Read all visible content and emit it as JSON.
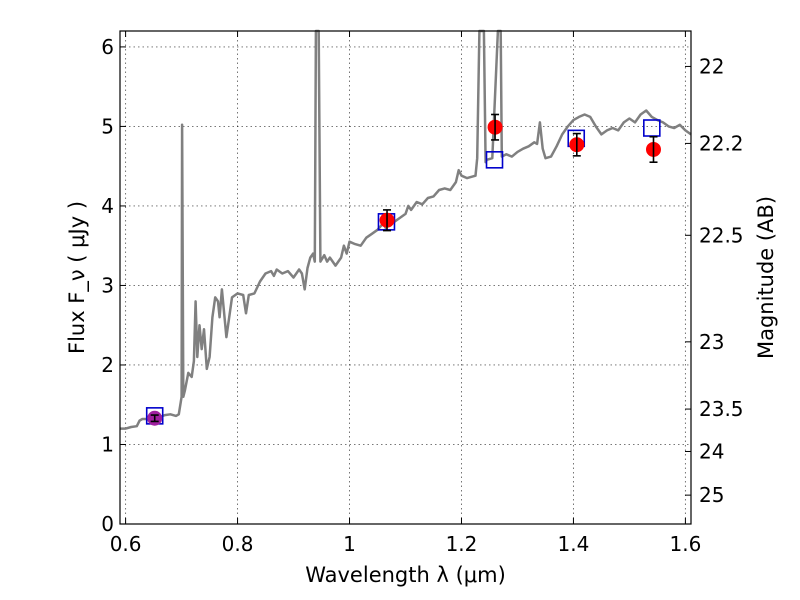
{
  "chart_data": {
    "type": "line",
    "xlabel": "Wavelength  λ (μm)",
    "ylabel": "Flux  F_ν  ( μJy )",
    "y2label": "Magnitude (AB)",
    "xlim": [
      0.59,
      1.61
    ],
    "ylim": [
      0,
      6.2
    ],
    "grid": true,
    "x_ticks": [
      {
        "value": 0.6,
        "label": "0.6"
      },
      {
        "value": 0.8,
        "label": "0.8"
      },
      {
        "value": 1.0,
        "label": "1"
      },
      {
        "value": 1.2,
        "label": "1.2"
      },
      {
        "value": 1.4,
        "label": "1.4"
      },
      {
        "value": 1.6,
        "label": "1.6"
      }
    ],
    "y_ticks": [
      {
        "value": 0,
        "label": "0"
      },
      {
        "value": 1,
        "label": "1"
      },
      {
        "value": 2,
        "label": "2"
      },
      {
        "value": 3,
        "label": "3"
      },
      {
        "value": 4,
        "label": "4"
      },
      {
        "value": 5,
        "label": "5"
      },
      {
        "value": 6,
        "label": "6"
      }
    ],
    "y2_ticks": [
      {
        "mag": 22,
        "label": "22"
      },
      {
        "mag": 22.2,
        "label": "22.2"
      },
      {
        "mag": 22.5,
        "label": "22.5"
      },
      {
        "mag": 23,
        "label": "23"
      },
      {
        "mag": 23.5,
        "label": "23.5"
      },
      {
        "mag": 24,
        "label": "24"
      },
      {
        "mag": 25,
        "label": "25"
      }
    ],
    "colors": {
      "model": "#808080",
      "observed": "#ff0000",
      "observed_upper_limit": "#a020a0",
      "model_photometry": "#0000cc",
      "errorbar": "#000000"
    },
    "series": [
      {
        "kind": "model_sed",
        "points": [
          [
            0.59,
            1.2
          ],
          [
            0.6,
            1.2
          ],
          [
            0.61,
            1.22
          ],
          [
            0.62,
            1.23
          ],
          [
            0.625,
            1.3
          ],
          [
            0.63,
            1.32
          ],
          [
            0.64,
            1.32
          ],
          [
            0.65,
            1.35
          ],
          [
            0.66,
            1.34
          ],
          [
            0.67,
            1.37
          ],
          [
            0.68,
            1.38
          ],
          [
            0.69,
            1.36
          ],
          [
            0.695,
            1.38
          ],
          [
            0.7,
            1.6
          ],
          [
            0.701,
            5.02
          ],
          [
            0.703,
            1.6
          ],
          [
            0.706,
            1.68
          ],
          [
            0.712,
            1.9
          ],
          [
            0.718,
            1.85
          ],
          [
            0.722,
            2.05
          ],
          [
            0.725,
            2.8
          ],
          [
            0.728,
            2.1
          ],
          [
            0.732,
            2.5
          ],
          [
            0.736,
            2.2
          ],
          [
            0.74,
            2.45
          ],
          [
            0.745,
            1.95
          ],
          [
            0.75,
            2.1
          ],
          [
            0.755,
            2.6
          ],
          [
            0.76,
            2.85
          ],
          [
            0.765,
            2.8
          ],
          [
            0.768,
            2.6
          ],
          [
            0.772,
            2.95
          ],
          [
            0.78,
            2.35
          ],
          [
            0.785,
            2.6
          ],
          [
            0.79,
            2.85
          ],
          [
            0.8,
            2.9
          ],
          [
            0.81,
            2.88
          ],
          [
            0.815,
            2.65
          ],
          [
            0.82,
            2.88
          ],
          [
            0.83,
            2.9
          ],
          [
            0.84,
            3.05
          ],
          [
            0.85,
            3.15
          ],
          [
            0.86,
            3.18
          ],
          [
            0.865,
            3.12
          ],
          [
            0.87,
            3.2
          ],
          [
            0.88,
            3.15
          ],
          [
            0.89,
            3.18
          ],
          [
            0.9,
            3.1
          ],
          [
            0.91,
            3.2
          ],
          [
            0.915,
            3.15
          ],
          [
            0.92,
            2.95
          ],
          [
            0.925,
            3.22
          ],
          [
            0.93,
            3.35
          ],
          [
            0.935,
            3.4
          ],
          [
            0.938,
            3.3
          ],
          [
            0.94,
            6.2
          ],
          [
            0.945,
            6.2
          ],
          [
            0.948,
            3.3
          ],
          [
            0.955,
            3.38
          ],
          [
            0.96,
            3.3
          ],
          [
            0.965,
            3.35
          ],
          [
            0.97,
            3.3
          ],
          [
            0.975,
            3.25
          ],
          [
            0.985,
            3.35
          ],
          [
            0.99,
            3.5
          ],
          [
            0.995,
            3.4
          ],
          [
            1.0,
            3.55
          ],
          [
            1.01,
            3.52
          ],
          [
            1.02,
            3.5
          ],
          [
            1.03,
            3.6
          ],
          [
            1.04,
            3.65
          ],
          [
            1.05,
            3.7
          ],
          [
            1.06,
            3.78
          ],
          [
            1.065,
            3.72
          ],
          [
            1.07,
            3.85
          ],
          [
            1.08,
            3.8
          ],
          [
            1.09,
            3.85
          ],
          [
            1.1,
            3.9
          ],
          [
            1.105,
            4.0
          ],
          [
            1.11,
            3.95
          ],
          [
            1.12,
            4.05
          ],
          [
            1.13,
            4.02
          ],
          [
            1.14,
            4.1
          ],
          [
            1.15,
            4.12
          ],
          [
            1.16,
            4.2
          ],
          [
            1.17,
            4.22
          ],
          [
            1.18,
            4.2
          ],
          [
            1.19,
            4.3
          ],
          [
            1.195,
            4.45
          ],
          [
            1.2,
            4.38
          ],
          [
            1.21,
            4.35
          ],
          [
            1.225,
            4.38
          ],
          [
            1.228,
            4.6
          ],
          [
            1.232,
            6.2
          ],
          [
            1.24,
            6.2
          ],
          [
            1.243,
            4.55
          ],
          [
            1.245,
            4.58
          ],
          [
            1.255,
            4.6
          ],
          [
            1.265,
            6.2
          ],
          [
            1.27,
            6.2
          ],
          [
            1.272,
            4.62
          ],
          [
            1.28,
            4.65
          ],
          [
            1.29,
            4.62
          ],
          [
            1.3,
            4.68
          ],
          [
            1.31,
            4.72
          ],
          [
            1.32,
            4.75
          ],
          [
            1.33,
            4.8
          ],
          [
            1.335,
            4.78
          ],
          [
            1.34,
            5.05
          ],
          [
            1.345,
            4.72
          ],
          [
            1.35,
            4.6
          ],
          [
            1.36,
            4.62
          ],
          [
            1.37,
            4.75
          ],
          [
            1.38,
            4.9
          ],
          [
            1.39,
            5.0
          ],
          [
            1.4,
            5.08
          ],
          [
            1.41,
            5.12
          ],
          [
            1.42,
            5.15
          ],
          [
            1.43,
            5.12
          ],
          [
            1.44,
            5.0
          ],
          [
            1.45,
            4.9
          ],
          [
            1.46,
            4.95
          ],
          [
            1.47,
            4.98
          ],
          [
            1.48,
            4.95
          ],
          [
            1.49,
            5.05
          ],
          [
            1.5,
            5.1
          ],
          [
            1.51,
            5.05
          ],
          [
            1.52,
            5.15
          ],
          [
            1.53,
            5.2
          ],
          [
            1.54,
            5.12
          ],
          [
            1.55,
            5.08
          ],
          [
            1.56,
            5.05
          ],
          [
            1.57,
            5.0
          ],
          [
            1.58,
            4.98
          ],
          [
            1.59,
            5.02
          ],
          [
            1.6,
            4.95
          ],
          [
            1.61,
            4.9
          ]
        ]
      },
      {
        "kind": "model_photometry",
        "points": [
          {
            "x": 0.652,
            "y": 1.36
          },
          {
            "x": 1.066,
            "y": 3.8
          },
          {
            "x": 1.259,
            "y": 4.58
          },
          {
            "x": 1.405,
            "y": 4.85
          },
          {
            "x": 1.54,
            "y": 4.98
          }
        ]
      },
      {
        "kind": "observed_photometry",
        "points": [
          {
            "x": 0.652,
            "y": 1.33,
            "err": 0.04,
            "upper_limit": true
          },
          {
            "x": 1.067,
            "y": 3.82,
            "err": 0.13,
            "upper_limit": false
          },
          {
            "x": 1.26,
            "y": 4.99,
            "err": 0.16,
            "upper_limit": false
          },
          {
            "x": 1.406,
            "y": 4.77,
            "err": 0.14,
            "upper_limit": false
          },
          {
            "x": 1.543,
            "y": 4.71,
            "err": 0.16,
            "upper_limit": false
          }
        ]
      }
    ]
  }
}
